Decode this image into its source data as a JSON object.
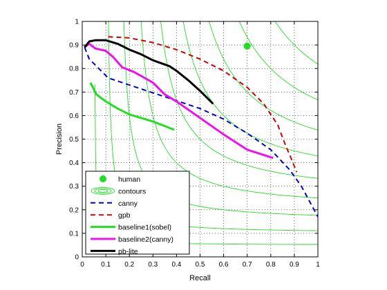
{
  "chart_data": {
    "type": "line",
    "xlabel": "Recall",
    "ylabel": "Precision",
    "xlim": [
      0,
      1
    ],
    "ylim": [
      0,
      1
    ],
    "x_ticks": [
      "0",
      "0.1",
      "0.2",
      "0.3",
      "0.4",
      "0.5",
      "0.6",
      "0.7",
      "0.8",
      "0.9",
      "1"
    ],
    "y_ticks": [
      "0",
      "0.1",
      "0.2",
      "0.3",
      "0.4",
      "0.5",
      "0.6",
      "0.7",
      "0.8",
      "0.9",
      "1"
    ],
    "grid": "dotted",
    "legend_position": "bottom-left",
    "contour_levels": [
      0.1,
      0.2,
      0.3,
      0.4,
      0.5,
      0.6,
      0.7,
      0.8,
      0.9
    ],
    "series": [
      {
        "name": "human",
        "style": "marker",
        "color": "#22dd22",
        "x": [
          0.7
        ],
        "y": [
          0.895
        ]
      },
      {
        "name": "contours",
        "style": "contour",
        "color": "#22dd22",
        "x": [],
        "y": []
      },
      {
        "name": "canny",
        "style": "dashed",
        "color": "#0000cc",
        "x": [
          0.01,
          0.03,
          0.07,
          0.11,
          0.2,
          0.35,
          0.5,
          0.6,
          0.7,
          0.8,
          0.88,
          0.93,
          1.0
        ],
        "y": [
          0.89,
          0.84,
          0.8,
          0.76,
          0.73,
          0.68,
          0.63,
          0.585,
          0.525,
          0.455,
          0.37,
          0.3,
          0.17
        ]
      },
      {
        "name": "gpb",
        "style": "dashed",
        "color": "#cc0000",
        "x": [
          0.11,
          0.2,
          0.3,
          0.4,
          0.5,
          0.6,
          0.7,
          0.77,
          0.83,
          0.86,
          0.89,
          0.91
        ],
        "y": [
          0.935,
          0.93,
          0.91,
          0.88,
          0.84,
          0.79,
          0.72,
          0.65,
          0.56,
          0.48,
          0.41,
          0.36
        ]
      },
      {
        "name": "baseline1(sobel)",
        "style": "solid",
        "color": "#22dd22",
        "x": [
          0.035,
          0.06,
          0.1,
          0.15,
          0.2,
          0.3,
          0.39
        ],
        "y": [
          0.74,
          0.69,
          0.66,
          0.63,
          0.605,
          0.575,
          0.54
        ]
      },
      {
        "name": "baseline2(canny)",
        "style": "solid",
        "color": "#ee11ee",
        "x": [
          0.01,
          0.03,
          0.055,
          0.1,
          0.13,
          0.17,
          0.22,
          0.3,
          0.35,
          0.4,
          0.5,
          0.6,
          0.7,
          0.81
        ],
        "y": [
          0.89,
          0.905,
          0.885,
          0.875,
          0.85,
          0.805,
          0.785,
          0.74,
          0.69,
          0.66,
          0.59,
          0.52,
          0.455,
          0.42
        ]
      },
      {
        "name": "pb-lite",
        "style": "solid",
        "color": "#000000",
        "x": [
          0.01,
          0.03,
          0.055,
          0.1,
          0.15,
          0.2,
          0.25,
          0.3,
          0.37,
          0.4,
          0.45,
          0.5,
          0.555
        ],
        "y": [
          0.89,
          0.915,
          0.92,
          0.92,
          0.905,
          0.88,
          0.86,
          0.835,
          0.81,
          0.79,
          0.75,
          0.705,
          0.65
        ]
      }
    ]
  }
}
